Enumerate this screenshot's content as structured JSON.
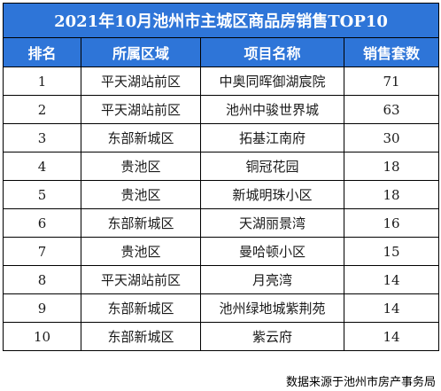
{
  "title": "2021年10月池州市主城区商品房销售TOP10",
  "columns": [
    "排名",
    "所属区域",
    "项目名称",
    "销售套数"
  ],
  "rows": [
    {
      "rank": "1",
      "area": "平天湖站前区",
      "project": "中奥同晖御湖宸院",
      "units": "71"
    },
    {
      "rank": "2",
      "area": "平天湖站前区",
      "project": "池州中骏世界城",
      "units": "63"
    },
    {
      "rank": "3",
      "area": "东部新城区",
      "project": "拓基江南府",
      "units": "30"
    },
    {
      "rank": "4",
      "area": "贵池区",
      "project": "铜冠花园",
      "units": "18"
    },
    {
      "rank": "5",
      "area": "贵池区",
      "project": "新城明珠小区",
      "units": "18"
    },
    {
      "rank": "6",
      "area": "东部新城区",
      "project": "天湖丽景湾",
      "units": "16"
    },
    {
      "rank": "7",
      "area": "贵池区",
      "project": "曼哈顿小区",
      "units": "15"
    },
    {
      "rank": "8",
      "area": "平天湖站前区",
      "project": "月亮湾",
      "units": "14"
    },
    {
      "rank": "9",
      "area": "东部新城区",
      "project": "池州绿地城紫荆苑",
      "units": "14"
    },
    {
      "rank": "10",
      "area": "东部新城区",
      "project": "紫云府",
      "units": "14"
    }
  ],
  "source": "数据来源于池州市房产事务局",
  "colors": {
    "header_bg": "#2e75d8",
    "header_text": "#ffffff",
    "border": "#000000"
  }
}
